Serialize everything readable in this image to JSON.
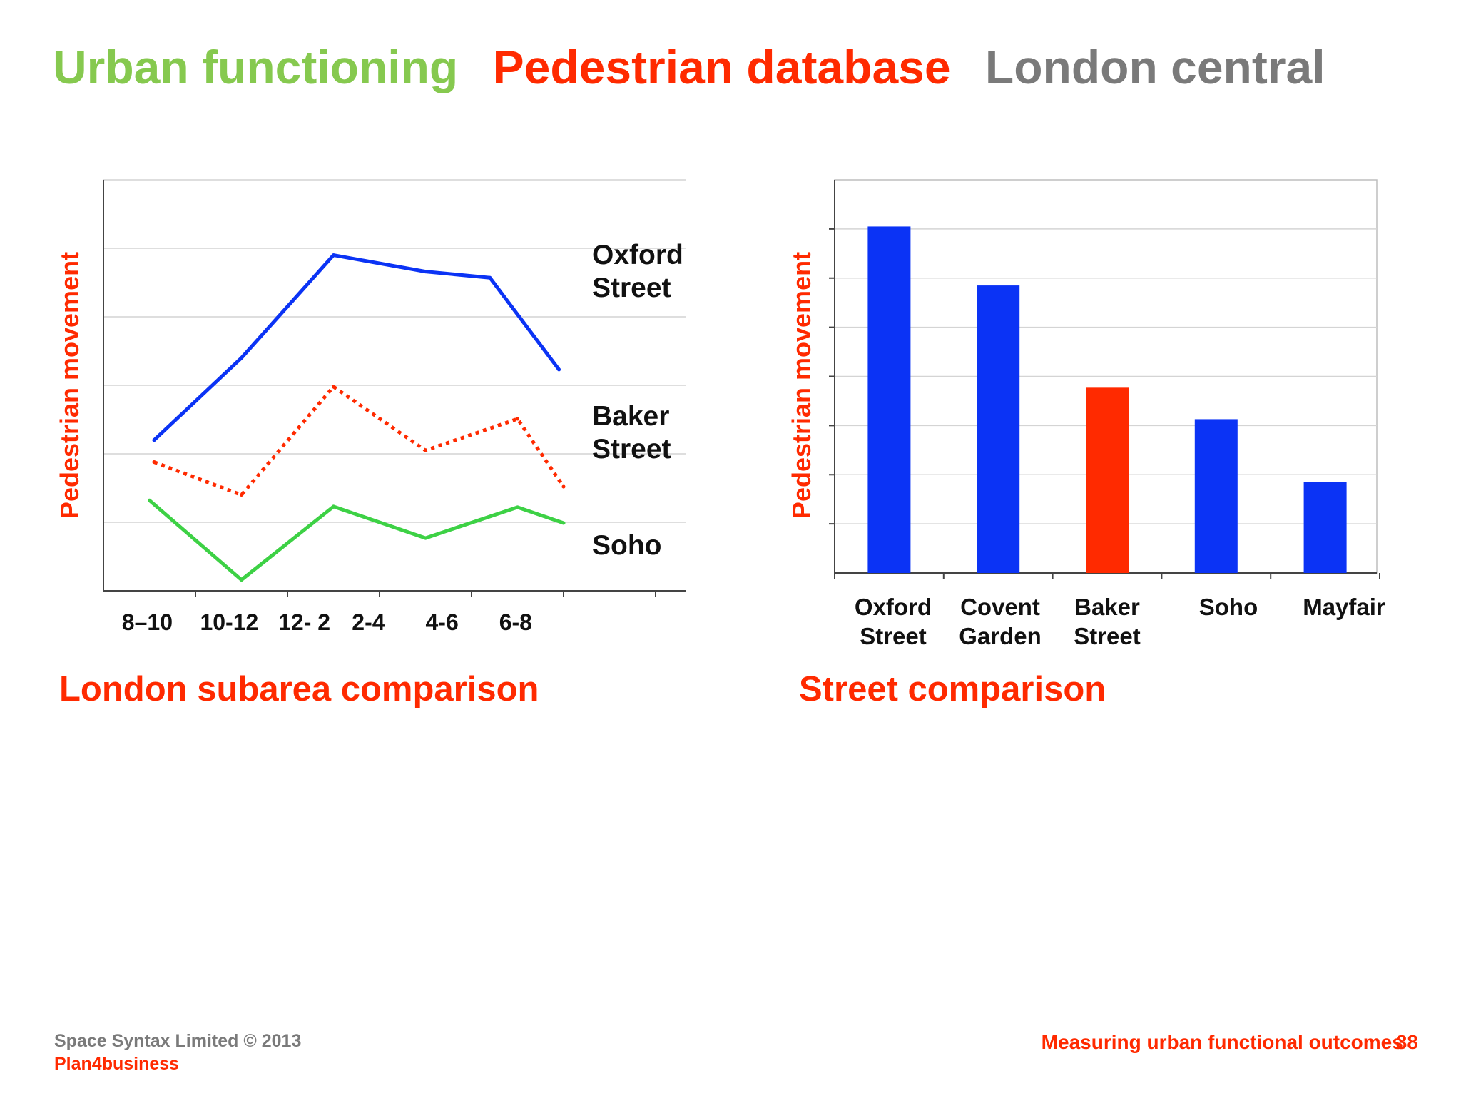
{
  "title": {
    "part1": "Urban functioning",
    "part2": "Pedestrian database",
    "part3": "London central"
  },
  "colors": {
    "green": "#86c94f",
    "red": "#ff2a00",
    "gray": "#7a7a7a",
    "blue": "#0b33f5",
    "soho_green": "#3dd145"
  },
  "chart_data": [
    {
      "type": "line",
      "ylabel": "Pedestrian movement",
      "caption": "London subarea comparison",
      "categories": [
        "8–10",
        "10-12",
        "12- 2",
        "2-4",
        "4-6",
        "6-8"
      ],
      "ylim": [
        0,
        6
      ],
      "grid": true,
      "series": [
        {
          "name": "Oxford Street",
          "name_lines": [
            "Oxford",
            "Street"
          ],
          "style": "solid",
          "color": "#0b33f5",
          "x": [
            0.55,
            1.5,
            2.5,
            3.5,
            4.2,
            4.95
          ],
          "values": [
            2.2,
            3.4,
            4.9,
            4.66,
            4.57,
            3.23
          ]
        },
        {
          "name": "Baker Street",
          "name_lines": [
            "Baker",
            "Street"
          ],
          "style": "dotted",
          "color": "#ff2a00",
          "x": [
            0.55,
            1.5,
            2.5,
            3.5,
            4.5,
            5.0
          ],
          "values": [
            1.88,
            1.4,
            2.98,
            2.05,
            2.51,
            1.52
          ]
        },
        {
          "name": "Soho",
          "name_lines": [
            "Soho"
          ],
          "style": "solid",
          "color": "#3dd145",
          "x": [
            0.5,
            1.5,
            2.5,
            3.5,
            4.5,
            5.0
          ],
          "values": [
            1.32,
            0.16,
            1.23,
            0.77,
            1.22,
            0.99
          ]
        }
      ]
    },
    {
      "type": "bar",
      "ylabel": "Pedestrian movement",
      "caption": "Street comparison",
      "categories": [
        {
          "lines": [
            "Oxford",
            "Street"
          ]
        },
        {
          "lines": [
            "Covent",
            "Garden"
          ]
        },
        {
          "lines": [
            "Baker",
            "Street"
          ]
        },
        {
          "lines": [
            "Soho"
          ]
        },
        {
          "lines": [
            "Mayfair"
          ]
        }
      ],
      "values": [
        7.05,
        5.85,
        3.77,
        3.13,
        1.85
      ],
      "bar_colors": [
        "#0b33f5",
        "#0b33f5",
        "#ff2a00",
        "#0b33f5",
        "#0b33f5"
      ],
      "ylim": [
        0,
        8
      ],
      "grid": true
    }
  ],
  "footer": {
    "company": "Space Syntax Limited © 2013",
    "brand": "Plan4business",
    "subtitle": "Measuring urban functional outcomes",
    "page": "38"
  }
}
